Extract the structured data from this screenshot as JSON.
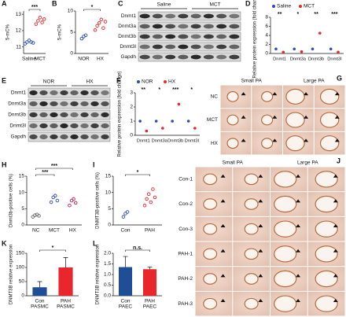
{
  "panels_images": {
    "blots": [
      {
        "label": "C",
        "columns": [
          "Saline",
          "MCT"
        ],
        "rows": [
          "Dnmt1",
          "Dnmt3a",
          "Dnmt3b",
          "Dnmt3l",
          "Gapdh"
        ]
      },
      {
        "label": "E",
        "columns": [
          "NOR",
          "HX"
        ],
        "rows": [
          "Dnmt1",
          "Dnmt3a",
          "Dnmt3b",
          "Dnmt3l",
          "Gapdh"
        ]
      }
    ],
    "histology": [
      {
        "label": "G",
        "columns": [
          "Small PA",
          "Large PA"
        ],
        "rows": [
          "NC",
          "MCT",
          "HX"
        ]
      },
      {
        "label": "J",
        "columns": [
          "Small PA",
          "Large PA"
        ],
        "rows": [
          "Con-1",
          "Con-2",
          "Con-3",
          "PAH-1",
          "PAH-2",
          "PAH-3"
        ]
      }
    ]
  },
  "chart_data": [
    {
      "type": "dot",
      "label": "A",
      "ylabel": "5-mC%",
      "categories": [
        "Saline",
        "MCT"
      ],
      "colors": [
        "#2b4bb3",
        "#e8262b"
      ],
      "values": [
        [
          11.2,
          11.3,
          11.4,
          11.3,
          11.25
        ],
        [
          12.4,
          12.6,
          12.8,
          12.5,
          12.7
        ]
      ],
      "ylim": [
        10.6,
        13.2
      ],
      "yticks": [
        11,
        12,
        13
      ],
      "annotations": [
        "***"
      ]
    },
    {
      "type": "dot",
      "label": "B",
      "ylabel": "5-mC%",
      "categories": [
        "NOR",
        "HX"
      ],
      "colors": [
        "#2b4bb3",
        "#e8262b"
      ],
      "values": [
        [
          3.5,
          4.0,
          4.3
        ],
        [
          5.5,
          6.5,
          7.2,
          8.0,
          6.0,
          7.5
        ]
      ],
      "ylim": [
        0,
        10
      ],
      "yticks": [
        0,
        5,
        10
      ],
      "annotations": [
        "*"
      ]
    },
    {
      "type": "dot-mean",
      "label": "D",
      "ylabel": "Relative protein expression (fold change)",
      "categories": [
        "Dnmt1",
        "Dnmt3a",
        "Dnmt3b",
        "Dnmt3l"
      ],
      "series": [
        {
          "name": "Saline",
          "color": "#2b4bb3",
          "values": [
            1,
            1,
            1,
            1
          ]
        },
        {
          "name": "MCT",
          "color": "#e8262b",
          "values": [
            0.3,
            0.4,
            4.5,
            0.3
          ]
        }
      ],
      "ylim": [
        0,
        8
      ],
      "yticks": [
        0,
        2,
        4,
        6,
        8
      ],
      "annotations": [
        "**",
        "*",
        "**",
        "***"
      ]
    },
    {
      "type": "dot-mean",
      "label": "F",
      "ylabel": "Relative protein expression (fold change)",
      "categories": [
        "Dnmt1",
        "Dnmt3a",
        "Dnmt3b",
        "Dnmt3l"
      ],
      "series": [
        {
          "name": "NOR",
          "color": "#2b4bb3",
          "values": [
            1,
            1,
            1,
            1
          ]
        },
        {
          "name": "HX",
          "color": "#e8262b",
          "values": [
            0.3,
            0.5,
            2.2,
            0.5
          ]
        }
      ],
      "ylim": [
        0,
        3
      ],
      "yticks": [
        0,
        1,
        2,
        3
      ],
      "annotations": [
        "**",
        "*",
        "***",
        "*"
      ]
    },
    {
      "type": "dot",
      "label": "H",
      "ylabel": "Dnmt3b-positive cells (%)",
      "categories": [
        "NC",
        "MCT",
        "HX"
      ],
      "colors": [
        "#666666",
        "#2b4bb3",
        "#c2185b"
      ],
      "values": [
        [
          2.5,
          3.0,
          3.2,
          2.8
        ],
        [
          7.0,
          8.5,
          9.0,
          7.5
        ],
        [
          6.0,
          7.5,
          8.0,
          6.8
        ]
      ],
      "ylim": [
        0,
        15
      ],
      "yticks": [
        0,
        5,
        10,
        15
      ],
      "annotations": [
        "***",
        "***"
      ]
    },
    {
      "type": "dot",
      "label": "I",
      "ylabel": "DNMT3B-positive cells (%)",
      "categories": [
        "Con",
        "PAH"
      ],
      "colors": [
        "#2b4bb3",
        "#e8262b"
      ],
      "values": [
        [
          2.5,
          3.5,
          4.0
        ],
        [
          6.0,
          8.0,
          9.5,
          7.0,
          11.0,
          8.5
        ]
      ],
      "ylim": [
        0,
        15
      ],
      "yticks": [
        0,
        5,
        10,
        15
      ],
      "annotations": [
        "*"
      ]
    },
    {
      "type": "bar",
      "label": "K",
      "ylabel": "DNMT3B relative expression",
      "categories": [
        "Con",
        "PAH"
      ],
      "category_line2": [
        "PASMC",
        "PASMC"
      ],
      "colors": [
        "#1f4e96",
        "#e8262b"
      ],
      "values": [
        30,
        100
      ],
      "errors": [
        20,
        35
      ],
      "ylim": [
        0,
        150
      ],
      "yticks": [
        0,
        50,
        100,
        150
      ],
      "annotations": [
        "*"
      ]
    },
    {
      "type": "bar",
      "label": "L",
      "ylabel": "DNMT3B relative expression",
      "categories": [
        "Con",
        "PAH"
      ],
      "category_line2": [
        "PAEC",
        "PAEC"
      ],
      "colors": [
        "#1f4e96",
        "#e8262b"
      ],
      "values": [
        1.35,
        1.25
      ],
      "errors": [
        0.5,
        0.1
      ],
      "ylim": [
        0,
        2
      ],
      "yticks": [
        {
          "value": 0,
          "label": "0.0"
        },
        {
          "value": 0.5,
          "label": "0.5"
        },
        {
          "value": 1,
          "label": "1.0"
        },
        {
          "value": 1.5,
          "label": "1.5"
        },
        {
          "value": 2,
          "label": "2.0"
        }
      ],
      "annotations": [
        "n.s."
      ]
    }
  ]
}
